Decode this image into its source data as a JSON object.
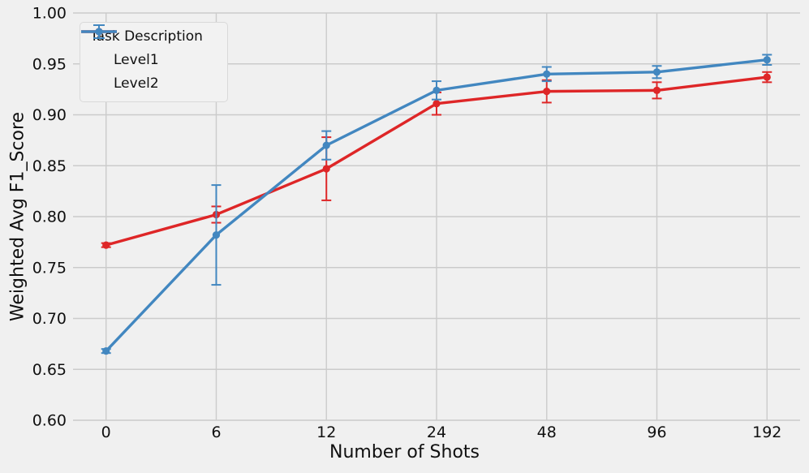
{
  "chart_data": {
    "type": "line",
    "title": "",
    "xlabel": "Number of Shots",
    "ylabel": "Weighted Avg F1_Score",
    "x_categories": [
      "0",
      "6",
      "12",
      "24",
      "48",
      "96",
      "192"
    ],
    "ylim": [
      0.6,
      1.0
    ],
    "yticks": [
      "0.60",
      "0.65",
      "0.70",
      "0.75",
      "0.80",
      "0.85",
      "0.90",
      "0.95",
      "1.00"
    ],
    "grid": true,
    "legend": {
      "title": "Task Description",
      "position": "upper left",
      "entries": [
        "Level1",
        "Level2"
      ]
    },
    "series": [
      {
        "name": "Level1",
        "color": "#de2627",
        "marker": "circle",
        "values": [
          0.772,
          0.802,
          0.847,
          0.911,
          0.923,
          0.924,
          0.937
        ],
        "errors": [
          0.002,
          0.008,
          0.031,
          0.011,
          0.011,
          0.008,
          0.005
        ]
      },
      {
        "name": "Level2",
        "color": "#4287c0",
        "marker": "circle",
        "values": [
          0.668,
          0.782,
          0.87,
          0.924,
          0.94,
          0.942,
          0.954
        ],
        "errors": [
          0.002,
          0.049,
          0.014,
          0.009,
          0.007,
          0.006,
          0.005
        ]
      }
    ],
    "colors": {
      "background": "#f0f0f0",
      "grid": "#cbcbcb",
      "text": "#101010"
    }
  }
}
